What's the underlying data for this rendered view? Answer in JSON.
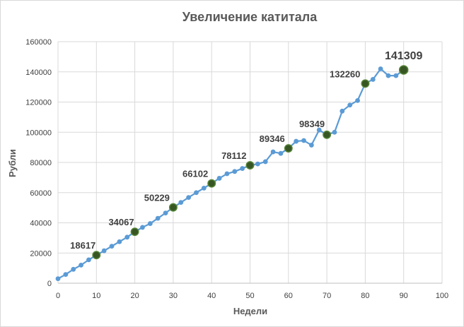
{
  "chart_data": {
    "type": "line",
    "title": "Увеличение катитала",
    "xlabel": "Недели",
    "ylabel": "Рубли",
    "xlim": [
      0,
      100
    ],
    "ylim": [
      0,
      160000
    ],
    "x_ticks": [
      0,
      10,
      20,
      30,
      40,
      50,
      60,
      70,
      80,
      90,
      100
    ],
    "y_ticks": [
      0,
      20000,
      40000,
      60000,
      80000,
      100000,
      120000,
      140000,
      160000
    ],
    "grid": true,
    "legend": "none",
    "series": [
      {
        "x": [
          0,
          2,
          4,
          6,
          8,
          10,
          12,
          14,
          16,
          18,
          20,
          22,
          24,
          26,
          28,
          30,
          32,
          34,
          36,
          38,
          40,
          42,
          44,
          46,
          48,
          50,
          52,
          54,
          56,
          58,
          60,
          62,
          64,
          66,
          68,
          70,
          72,
          74,
          76,
          78,
          80,
          82,
          84,
          86,
          88,
          90
        ],
        "y": [
          3000,
          5800,
          9200,
          12000,
          15500,
          18617,
          21500,
          24500,
          27500,
          30500,
          34067,
          37000,
          39500,
          43000,
          46500,
          50229,
          53500,
          56800,
          60000,
          63000,
          66102,
          69500,
          72500,
          74000,
          76000,
          78112,
          79000,
          80500,
          87000,
          86000,
          89346,
          94000,
          94500,
          91500,
          101500,
          98349,
          100000,
          114000,
          118000,
          121000,
          132260,
          135000,
          142000,
          137500,
          137500,
          141309
        ]
      }
    ],
    "highlighted_points": [
      {
        "x": 10,
        "y": 18617,
        "label": "18617"
      },
      {
        "x": 20,
        "y": 34067,
        "label": "34067"
      },
      {
        "x": 30,
        "y": 50229,
        "label": "50229"
      },
      {
        "x": 40,
        "y": 66102,
        "label": "66102"
      },
      {
        "x": 50,
        "y": 78112,
        "label": "78112"
      },
      {
        "x": 60,
        "y": 89346,
        "label": "89346"
      },
      {
        "x": 70,
        "y": 98349,
        "label": "98349"
      },
      {
        "x": 80,
        "y": 132260,
        "label": "132260"
      },
      {
        "x": 90,
        "y": 141309,
        "label": "141309"
      }
    ],
    "colors": {
      "line": "#5b9bd5",
      "marker": "#5b9bd5",
      "highlight_fill": "#375623",
      "highlight_stroke": "#548235"
    }
  }
}
